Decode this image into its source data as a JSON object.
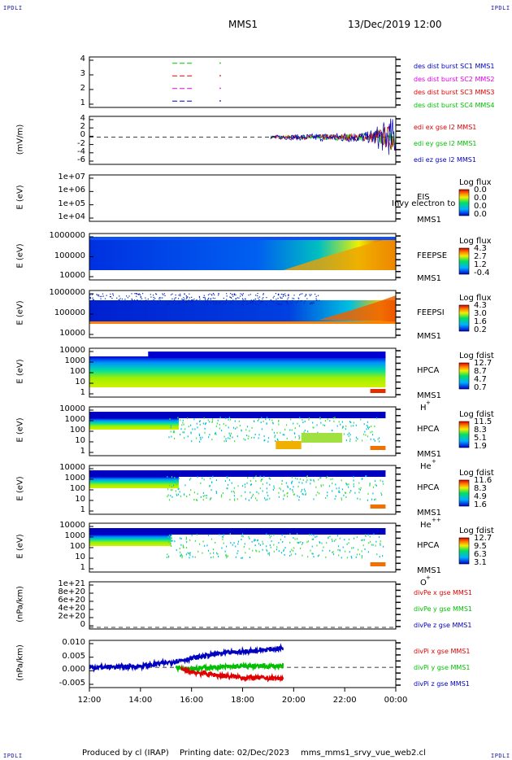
{
  "corners": {
    "tl": "IPDLI",
    "tr": "IPDLI",
    "bl": "IPDLI",
    "br": "IPDLI"
  },
  "header": {
    "spacecraft": "MMS1",
    "date": "13/Dec/2019 12:00"
  },
  "footer": {
    "produced": "Produced by cl (IRAP)",
    "printing": "Printing date: 02/Dec/2023",
    "file": "mms_mms1_srvy_vue_web2.cl"
  },
  "colors": {
    "red": "#e00000",
    "green": "#00c000",
    "blue": "#0000c0",
    "magenta": "#e000e0"
  },
  "chart_data": [
    {
      "type": "line",
      "name": "burst",
      "ylim": [
        0.5,
        4.5
      ],
      "yticks": [
        "4",
        "3",
        "2",
        "1"
      ],
      "legend": [
        {
          "text": "des dist burst SC1 MMS1",
          "color": "blue"
        },
        {
          "text": "des dist burst SC2 MMS2",
          "color": "magenta"
        },
        {
          "text": "des dist burst SC3 MMS3",
          "color": "red"
        },
        {
          "text": "des dist burst SC4 MMS4",
          "color": "green"
        }
      ],
      "segments": [
        {
          "y": 4,
          "x": [
            15.25,
            16.1
          ],
          "color": "green"
        },
        {
          "y": 3,
          "x": [
            15.25,
            16.1
          ],
          "color": "red"
        },
        {
          "y": 2,
          "x": [
            15.25,
            16.1
          ],
          "color": "magenta"
        },
        {
          "y": 1,
          "x": [
            15.25,
            16.1
          ],
          "color": "blue"
        }
      ]
    },
    {
      "type": "line",
      "name": "edi",
      "ylabel": "(mV/m)",
      "ylim": [
        -6.5,
        5
      ],
      "yticks": [
        "4",
        "2",
        "0",
        "-2",
        "-4",
        "-6"
      ],
      "legend": [
        {
          "text": "edi ex gse l2 MMS1",
          "color": "red"
        },
        {
          "text": "edi ey gse l2 MMS1",
          "color": "green"
        },
        {
          "text": "edi ez gse l2 MMS1",
          "color": "blue"
        }
      ]
    },
    {
      "type": "heatmap",
      "name": "eis",
      "ylabel": "E (eV)",
      "yticks": [
        "1e+07",
        "1e+06",
        "1e+05",
        "1e+04"
      ],
      "instrument": [
        "EIS",
        "MMS1"
      ],
      "overlay": "Invy electron to",
      "colorbar": {
        "title": "Log flux",
        "values": [
          "0.0",
          "0.0",
          "0.0",
          "0.0"
        ]
      }
    },
    {
      "type": "heatmap",
      "name": "feeps-e",
      "ylabel": "E (eV)",
      "yticks": [
        "1000000",
        "100000",
        "10000"
      ],
      "instrument": [
        "FEEPSE",
        "MMS1"
      ],
      "colorbar": {
        "title": "Log flux",
        "values": [
          "4.3",
          "2.7",
          "1.2",
          "-0.4"
        ]
      }
    },
    {
      "type": "heatmap",
      "name": "feeps-i",
      "ylabel": "E (eV)",
      "yticks": [
        "1000000",
        "100000",
        "10000"
      ],
      "instrument": [
        "FEEPSI",
        "MMS1"
      ],
      "colorbar": {
        "title": "Log flux",
        "values": [
          "4.3",
          "3.0",
          "1.6",
          "0.2"
        ]
      }
    },
    {
      "type": "heatmap",
      "name": "hpca-h",
      "ylabel": "E (eV)",
      "yticks": [
        "10000",
        "1000",
        "100",
        "10",
        "1"
      ],
      "instrument": [
        "HPCA",
        "MMS1",
        "H",
        "+"
      ],
      "colorbar": {
        "title": "Log fdist",
        "values": [
          "12.7",
          "8.7",
          "4.7",
          "0.7"
        ]
      }
    },
    {
      "type": "heatmap",
      "name": "hpca-he",
      "ylabel": "E (eV)",
      "yticks": [
        "10000",
        "1000",
        "100",
        "10",
        "1"
      ],
      "instrument": [
        "HPCA",
        "MMS1",
        "He",
        "+"
      ],
      "colorbar": {
        "title": "Log fdist",
        "values": [
          "11.5",
          "8.3",
          "5.1",
          "1.9"
        ]
      }
    },
    {
      "type": "heatmap",
      "name": "hpca-hepp",
      "ylabel": "E (eV)",
      "yticks": [
        "10000",
        "1000",
        "100",
        "10",
        "1"
      ],
      "instrument": [
        "HPCA",
        "MMS1",
        "He",
        "++"
      ],
      "colorbar": {
        "title": "Log fdist",
        "values": [
          "11.6",
          "8.3",
          "4.9",
          "1.6"
        ]
      }
    },
    {
      "type": "heatmap",
      "name": "hpca-o",
      "ylabel": "E (eV)",
      "yticks": [
        "10000",
        "1000",
        "100",
        "10",
        "1"
      ],
      "instrument": [
        "HPCA",
        "MMS1",
        "O",
        "+"
      ],
      "colorbar": {
        "title": "Log fdist",
        "values": [
          "12.7",
          "9.5",
          "6.3",
          "3.1"
        ]
      }
    },
    {
      "type": "line",
      "name": "divpe",
      "ylabel": "(nPa/km)",
      "ylim": [
        0,
        1.1e+21
      ],
      "yticks": [
        "1e+21",
        "8e+20",
        "6e+20",
        "4e+20",
        "2e+20",
        "0"
      ],
      "legend": [
        {
          "text": "divPe x gse MMS1",
          "color": "red"
        },
        {
          "text": "divPe y gse MMS1",
          "color": "green"
        },
        {
          "text": "divPe z gse MMS1",
          "color": "blue"
        }
      ]
    },
    {
      "type": "line",
      "name": "divpi",
      "ylabel": "(nPa/km)",
      "ylim": [
        -0.009,
        0.012
      ],
      "yticks": [
        "0.010",
        "0.005",
        "0.000",
        "-0.005"
      ],
      "legend": [
        {
          "text": "divPi x gse MMS1",
          "color": "red"
        },
        {
          "text": "divPi y gse MMS1",
          "color": "green"
        },
        {
          "text": "divPi z gse MMS1",
          "color": "blue"
        }
      ],
      "series": [
        {
          "color": "blue",
          "start": 12.0,
          "end": 19.6,
          "points": [
            [
              12.0,
              0.0
            ],
            [
              14.0,
              0.0005
            ],
            [
              15.0,
              0.002
            ],
            [
              16.0,
              0.004
            ],
            [
              17.0,
              0.006
            ],
            [
              18.0,
              0.007
            ],
            [
              19.6,
              0.0085
            ]
          ]
        },
        {
          "color": "green",
          "start": 15.4,
          "end": 19.6,
          "points": [
            [
              15.4,
              0.0
            ],
            [
              16.0,
              -0.0005
            ],
            [
              17.0,
              0.0
            ],
            [
              18.0,
              0.0005
            ],
            [
              19.6,
              0.0005
            ]
          ]
        },
        {
          "color": "red",
          "start": 15.6,
          "end": 19.6,
          "points": [
            [
              15.6,
              -0.001
            ],
            [
              16.0,
              -0.002
            ],
            [
              17.0,
              -0.0035
            ],
            [
              18.0,
              -0.0045
            ],
            [
              19.6,
              -0.005
            ]
          ]
        }
      ]
    }
  ],
  "xaxis": {
    "ticks": [
      "12:00",
      "14:00",
      "16:00",
      "18:00",
      "20:00",
      "22:00",
      "00:00"
    ],
    "range": [
      12,
      24
    ]
  }
}
